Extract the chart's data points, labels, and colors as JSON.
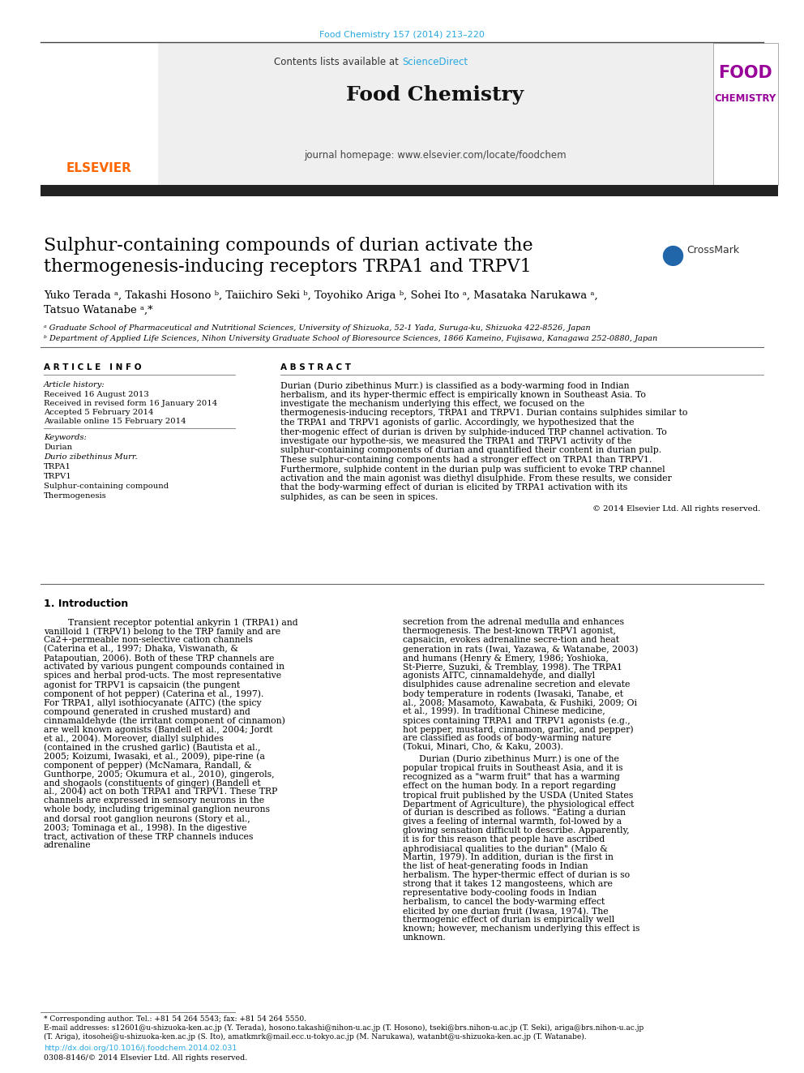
{
  "page_width": 9.92,
  "page_height": 13.23,
  "dpi": 100,
  "background_color": "#ffffff",
  "top_journal_ref": "Food Chemistry 157 (2014) 213–220",
  "top_journal_ref_color": "#29a8e0",
  "header_bg_color": "#efefef",
  "sciencedirect_color": "#29a8e0",
  "link_color": "#29a8e0",
  "thick_bar_color": "#222222",
  "title_line1": "Sulphur-containing compounds of durian activate the",
  "title_line2": "thermogenesis-inducing receptors TRPA1 and TRPV1",
  "title_fontsize": 16,
  "authors_line1": "Yuko Terada ᵃ, Takashi Hosono ᵇ, Taiichiro Seki ᵇ, Toyohiko Ariga ᵇ, Sohei Ito ᵃ, Masataka Narukawa ᵃ,",
  "authors_line2": "Tatsuo Watanabe ᵃ,*",
  "authors_fontsize": 9.5,
  "affil_a": "ᵃ Graduate School of Pharmaceutical and Nutritional Sciences, University of Shizuoka, 52-1 Yada, Suruga-ku, Shizuoka 422-8526, Japan",
  "affil_b": "ᵇ Department of Applied Life Sciences, Nihon University Graduate School of Bioresource Sciences, 1866 Kameino, Fujisawa, Kanagawa 252-0880, Japan",
  "affil_fontsize": 7.0,
  "article_info_header": "A R T I C L E   I N F O",
  "abstract_header": "A B S T R A C T",
  "article_history_label": "Article history:",
  "received1": "Received 16 August 2013",
  "received2": "Received in revised form 16 January 2014",
  "accepted": "Accepted 5 February 2014",
  "available": "Available online 15 February 2014",
  "keywords_label": "Keywords:",
  "keywords": [
    "Durian",
    "Durio zibethinus Murr.",
    "TRPA1",
    "TRPV1",
    "Sulphur-containing compound",
    "Thermogenesis"
  ],
  "keywords_italic": [
    false,
    true,
    false,
    false,
    false,
    false
  ],
  "abstract_text": "Durian (Durio zibethinus Murr.) is classified as a body-warming food in Indian herbalism, and its hyper-thermic effect is empirically known in Southeast Asia. To investigate the mechanism underlying this effect, we focused on the thermogenesis-inducing receptors, TRPA1 and TRPV1. Durian contains sulphides similar to the TRPA1 and TRPV1 agonists of garlic. Accordingly, we hypothesized that the ther-mogenic effect of durian is driven by sulphide-induced TRP channel activation. To investigate our hypothe-sis, we measured the TRPA1 and TRPV1 activity of the sulphur-containing components of durian and quantified their content in durian pulp. These sulphur-containing components had a stronger effect on TRPA1 than TRPV1. Furthermore, sulphide content in the durian pulp was sufficient to evoke TRP channel activation and the main agonist was diethyl disulphide. From these results, we consider that the body-warming effect of durian is elicited by TRPA1 activation with its sulphides, as can be seen in spices.",
  "abstract_copyright": "© 2014 Elsevier Ltd. All rights reserved.",
  "abstract_fontsize": 7.8,
  "intro_header": "1. Introduction",
  "intro_col1_para1": "Transient receptor potential ankyrin 1 (TRPA1) and vanilloid 1 (TRPV1) belong to the TRP family and are Ca2+-permeable non-selective cation channels (Caterina et al., 1997; Dhaka, Viswanath, & Patapoutian, 2006). Both of these TRP channels are activated by various pungent compounds contained in spices and herbal prod-ucts. The most representative agonist for TRPV1 is capsaicin (the pungent component of hot pepper) (Caterina et al., 1997). For TRPA1, allyl isothiocyanate (AITC) (the spicy compound generated in crushed mustard) and cinnamaldehyde (the irritant component of cinnamon) are well known agonists (Bandell et al., 2004; Jordt et al., 2004). Moreover, diallyl sulphides (contained in the crushed garlic) (Bautista et al., 2005; Koizumi, Iwasaki, et al., 2009), pipe-rine (a component of pepper) (McNamara, Randall, & Gunthorpe, 2005; Okumura et al., 2010), gingerols, and shogaols (constituents of ginger) (Bandell et al., 2004) act on both TRPA1 and TRPV1.",
  "intro_col1_para2": "These TRP channels are expressed in sensory neurons in the whole body, including trigeminal ganglion neurons and dorsal root ganglion neurons (Story et al., 2003; Tominaga et al., 1998). In the digestive tract, activation of these TRP channels induces adrenaline",
  "intro_col2_para1": "secretion from the adrenal medulla and enhances thermogenesis. The best-known TRPV1 agonist, capsaicin, evokes adrenaline secre-tion and heat generation in rats (Iwai, Yazawa, & Watanabe, 2003) and humans (Henry & Emery, 1986; Yoshioka, St-Pierre, Suzuki, & Tremblay, 1998). The TRPA1 agonists AITC, cinnamaldehyde, and diallyl disulphides cause adrenaline secretion and elevate body temperature in rodents (Iwasaki, Tanabe, et al., 2008; Masamoto, Kawabata, & Fushiki, 2009; Oi et al., 1999). In traditional Chinese medicine, spices containing TRPA1 and TRPV1 agonists (e.g., hot pepper, mustard, cinnamon, garlic, and pepper) are classified as foods of body-warming nature (Tokui, Minari, Cho, & Kaku, 2003).",
  "intro_col2_para2": "Durian (Durio zibethinus Murr.) is one of the popular tropical fruits in Southeast Asia, and it is recognized as a \"warm fruit\" that has a warming effect on the human body. In a report regarding tropical fruit published by the USDA (United States Department of Agriculture), the physiological effect of durian is described as follows. \"Eating a durian gives a feeling of internal warmth, fol-lowed by a glowing sensation difficult to describe. Apparently, it is for this reason that people have ascribed aphrodisiacal qualities to the durian\" (Malo & Martin, 1979). In addition, durian is the first in the list of heat-generating foods in Indian herbalism. The hyper-thermic effect of durian is so strong that it takes 12 mangosteens, which are representative body-cooling foods in Indian herbalism, to cancel the body-warming effect elicited by one durian fruit (Iwasa, 1974). The thermogenic effect of durian is empirically well known; however, mechanism underlying this effect is unknown.",
  "footnote_star": "* Corresponding author. Tel.: +81 54 264 5543; fax: +81 54 264 5550.",
  "footnote_email": "E-mail addresses: s12601@u-shizuoka-ken.ac.jp (Y. Terada), hosono.takashi@nihon-u.ac.jp (T. Hosono), tseki@brs.nihon-u.ac.jp (T. Seki), ariga@brs.nihon-u.ac.jp",
  "footnote_email2": "(T. Ariga), itosohei@u-shizuoka-ken.ac.jp (S. Ito), amatkmrk@mail.ecc.u-tokyo.ac.jp (M. Narukawa), watanbt@u-shizuoka-ken.ac.jp (T. Watanabe).",
  "doi_text": "http://dx.doi.org/10.1016/j.foodchem.2014.02.031",
  "issn_text": "0308-8146/© 2014 Elsevier Ltd. All rights reserved.",
  "body_fontsize": 7.8,
  "small_fontsize": 6.8
}
